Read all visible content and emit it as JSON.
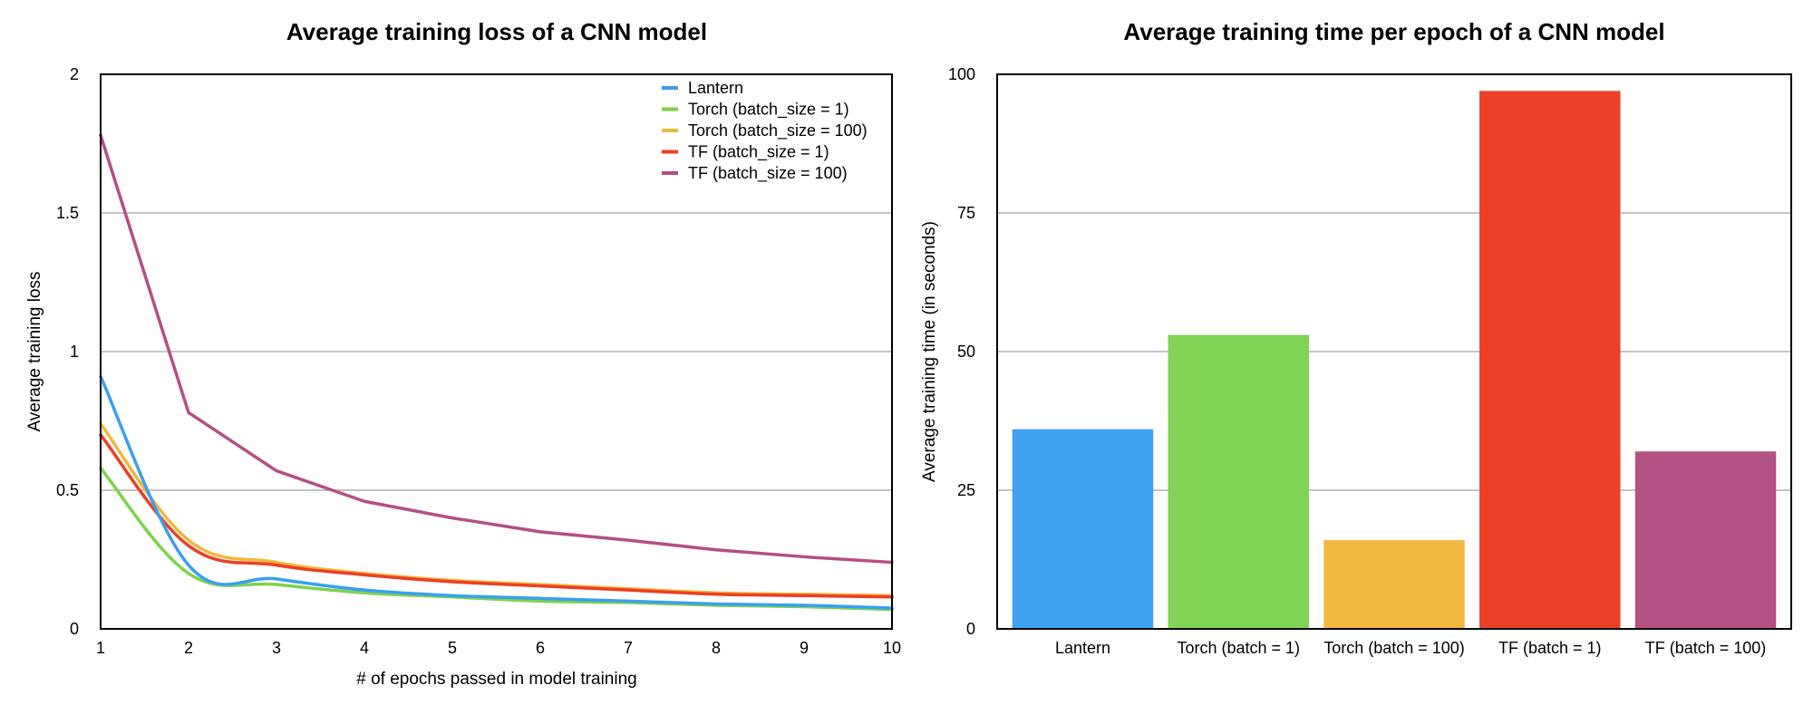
{
  "chart_data": [
    {
      "type": "line",
      "title": "Average training loss of a CNN model",
      "xlabel": "# of epochs passed in model training",
      "ylabel": "Average training loss",
      "xlim": [
        1,
        10
      ],
      "ylim": [
        0,
        2
      ],
      "x_ticks": [
        "1",
        "2",
        "3",
        "4",
        "5",
        "6",
        "7",
        "8",
        "9",
        "10"
      ],
      "y_ticks": [
        "0",
        "0.5",
        "1",
        "1.5",
        "2"
      ],
      "grid": true,
      "legend_position": "top-right",
      "x": [
        1,
        2,
        3,
        4,
        5,
        6,
        7,
        8,
        9,
        10
      ],
      "series": [
        {
          "name": "Lantern",
          "color": "#3a9ff0",
          "values": [
            0.91,
            0.23,
            0.18,
            0.14,
            0.12,
            0.11,
            0.1,
            0.09,
            0.085,
            0.075
          ]
        },
        {
          "name": "Torch (batch_size = 1)",
          "color": "#7ed24e",
          "values": [
            0.58,
            0.2,
            0.16,
            0.13,
            0.115,
            0.1,
            0.095,
            0.085,
            0.08,
            0.07
          ]
        },
        {
          "name": "Torch (batch_size = 100)",
          "color": "#f0b83c",
          "values": [
            0.74,
            0.32,
            0.24,
            0.2,
            0.175,
            0.16,
            0.145,
            0.13,
            0.125,
            0.12
          ]
        },
        {
          "name": "TF (batch_size = 1)",
          "color": "#ec3f26",
          "values": [
            0.7,
            0.3,
            0.23,
            0.195,
            0.17,
            0.155,
            0.14,
            0.125,
            0.12,
            0.115
          ]
        },
        {
          "name": "TF (batch_size = 100)",
          "color": "#b44f84",
          "values": [
            1.78,
            0.78,
            0.57,
            0.46,
            0.4,
            0.35,
            0.32,
            0.285,
            0.26,
            0.24
          ]
        }
      ]
    },
    {
      "type": "bar",
      "title": "Average training time per epoch of a CNN model",
      "xlabel": "",
      "ylabel": "Average training time (in seconds)",
      "ylim": [
        0,
        100
      ],
      "y_ticks": [
        "0",
        "25",
        "50",
        "75",
        "100"
      ],
      "grid": true,
      "categories": [
        "Lantern",
        "Torch (batch = 1)",
        "Torch (batch = 100)",
        "TF (batch = 1)",
        "TF (batch = 100)"
      ],
      "values": [
        36,
        53,
        16,
        97,
        32
      ],
      "colors": [
        "#3ea1f2",
        "#80d354",
        "#f1b942",
        "#ec4028",
        "#b35283"
      ]
    }
  ]
}
